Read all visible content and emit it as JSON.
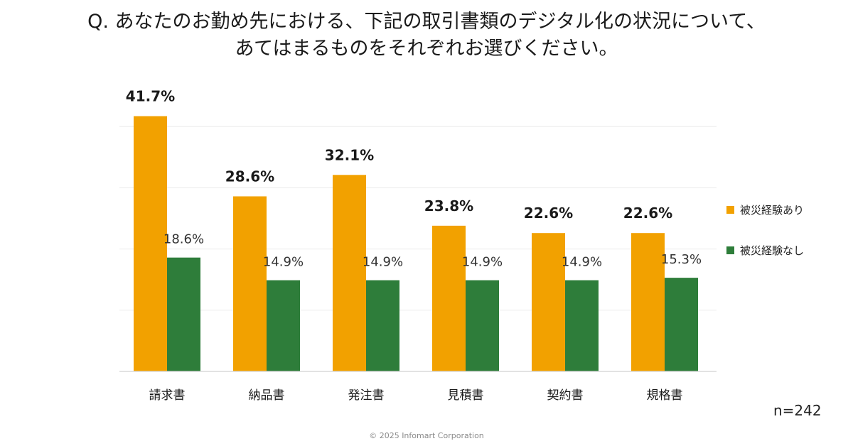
{
  "title_lines": [
    "Q. あなたのお勤め先における、下記の取引書類のデジタル化の状況について、",
    "あてはまるものをそれぞれお選びください。"
  ],
  "chart_data": {
    "type": "bar",
    "categories": [
      "請求書",
      "納品書",
      "発注書",
      "見積書",
      "契約書",
      "規格書"
    ],
    "series": [
      {
        "name": "被災経験あり",
        "color": "#f2a100",
        "values": [
          41.7,
          28.6,
          32.1,
          23.8,
          22.6,
          22.6
        ],
        "labels": [
          "41.7%",
          "28.6%",
          "32.1%",
          "23.8%",
          "22.6%",
          "22.6%"
        ]
      },
      {
        "name": "被災経験なし",
        "color": "#2e7d3a",
        "values": [
          18.6,
          14.9,
          14.9,
          14.9,
          14.9,
          15.3
        ],
        "labels": [
          "18.6%",
          "14.9%",
          "14.9%",
          "14.9%",
          "14.9%",
          "15.3%"
        ]
      }
    ],
    "ylim": [
      0,
      45
    ],
    "grid": true,
    "legend": "right"
  },
  "note": "n=242",
  "footer": "© 2025 Infomart Corporation"
}
